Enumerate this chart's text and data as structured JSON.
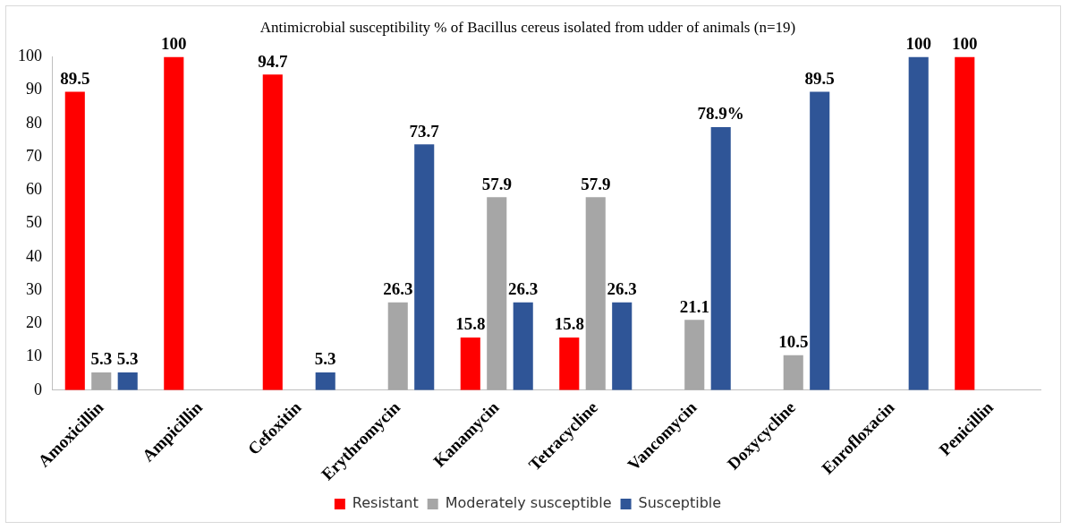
{
  "chart_data": {
    "type": "bar",
    "title": "Antimicrobial susceptibility % of Bacillus cereus isolated from udder of animals (n=19)",
    "categories": [
      "Amoxicillin",
      "Ampicillin",
      "Cefoxitin",
      "Erythromycin",
      "Kanamycin",
      "Tetracycline",
      "Vancomycin",
      "Doxycycline",
      "Enrofloxacin",
      "Penicillin"
    ],
    "series": [
      {
        "name": "Resistant",
        "color": "#ff0000",
        "values": [
          89.5,
          100,
          94.7,
          0,
          15.8,
          15.8,
          0,
          0,
          0,
          100
        ],
        "value_labels": [
          "89.5",
          "100",
          "94.7",
          null,
          "15.8",
          "15.8",
          null,
          null,
          null,
          "100"
        ]
      },
      {
        "name": "Moderately susceptible",
        "color": "#a6a6a6",
        "values": [
          5.3,
          0,
          0,
          26.3,
          57.9,
          57.9,
          21.1,
          10.5,
          0,
          0
        ],
        "value_labels": [
          "5.3",
          null,
          null,
          "26.3",
          "57.9",
          "57.9",
          "21.1",
          "10.5",
          null,
          null
        ]
      },
      {
        "name": "Susceptible",
        "color": "#2f5597",
        "values": [
          5.3,
          0,
          5.3,
          73.7,
          26.3,
          26.3,
          78.9,
          89.5,
          100,
          0
        ],
        "value_labels": [
          "5.3",
          null,
          "5.3",
          "73.7",
          "26.3",
          "26.3",
          "78.9%",
          "89.5",
          "100",
          null
        ]
      }
    ],
    "ylim": [
      0,
      100
    ],
    "yticks": [
      0,
      10,
      20,
      30,
      40,
      50,
      60,
      70,
      80,
      90,
      100
    ],
    "grid": false,
    "legend": "bottom"
  }
}
